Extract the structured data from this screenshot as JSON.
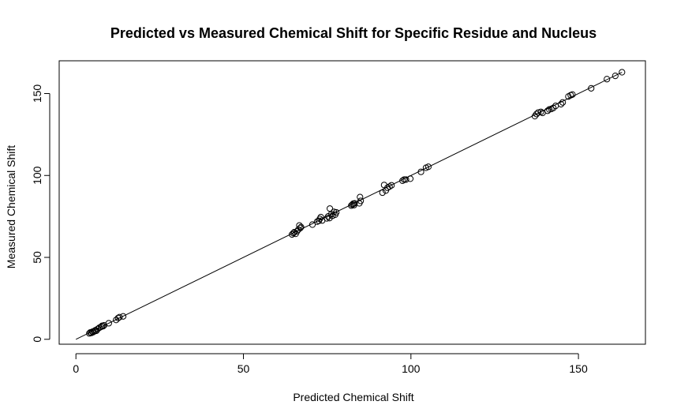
{
  "chart_data": {
    "type": "scatter",
    "title": "Predicted vs Measured Chemical Shift for Specific Residue and Nucleus",
    "xlabel": "Predicted Chemical Shift",
    "ylabel": "Measured Chemical Shift",
    "xlim": [
      -5,
      170
    ],
    "ylim": [
      -3,
      170
    ],
    "xticks": [
      0,
      50,
      100,
      150
    ],
    "yticks": [
      0,
      50,
      100,
      150
    ],
    "xtick_labels": [
      "0",
      "50",
      "100",
      "150"
    ],
    "ytick_labels": [
      "0",
      "50",
      "100",
      "150"
    ],
    "grid": false,
    "legend": "none",
    "reference_line": {
      "x": [
        0,
        163
      ],
      "y": [
        0,
        163
      ]
    },
    "points": [
      [
        4.0,
        3.6
      ],
      [
        4.3,
        4.2
      ],
      [
        4.6,
        3.9
      ],
      [
        4.9,
        4.6
      ],
      [
        5.2,
        4.4
      ],
      [
        5.5,
        5.1
      ],
      [
        5.8,
        5.5
      ],
      [
        6.1,
        5.2
      ],
      [
        6.5,
        6.3
      ],
      [
        7.0,
        7.1
      ],
      [
        7.5,
        7.6
      ],
      [
        7.8,
        8.2
      ],
      [
        8.1,
        8.0
      ],
      [
        8.4,
        8.5
      ],
      [
        9.8,
        9.8
      ],
      [
        12.0,
        11.8
      ],
      [
        12.6,
        13.0
      ],
      [
        13.0,
        13.5
      ],
      [
        14.1,
        14.0
      ],
      [
        64.5,
        64.0
      ],
      [
        64.9,
        64.8
      ],
      [
        65.2,
        65.4
      ],
      [
        65.6,
        64.4
      ],
      [
        66.0,
        65.9
      ],
      [
        66.4,
        67.0
      ],
      [
        66.7,
        69.5
      ],
      [
        67.0,
        68.0
      ],
      [
        67.2,
        68.5
      ],
      [
        70.6,
        70.0
      ],
      [
        72.0,
        71.8
      ],
      [
        72.5,
        72.3
      ],
      [
        72.8,
        73.5
      ],
      [
        73.1,
        74.6
      ],
      [
        73.5,
        72.5
      ],
      [
        74.9,
        73.8
      ],
      [
        75.3,
        75.0
      ],
      [
        75.7,
        74.0
      ],
      [
        75.8,
        79.8
      ],
      [
        76.2,
        76.3
      ],
      [
        76.6,
        75.4
      ],
      [
        77.0,
        77.8
      ],
      [
        77.4,
        76.1
      ],
      [
        77.7,
        77.5
      ],
      [
        82.2,
        81.6
      ],
      [
        82.5,
        82.2
      ],
      [
        82.8,
        82.8
      ],
      [
        83.0,
        81.9
      ],
      [
        83.2,
        83.0
      ],
      [
        84.6,
        83.0
      ],
      [
        84.8,
        86.8
      ],
      [
        85.0,
        84.5
      ],
      [
        91.5,
        89.5
      ],
      [
        92.0,
        94.2
      ],
      [
        92.5,
        90.8
      ],
      [
        93.0,
        92.5
      ],
      [
        93.6,
        93.2
      ],
      [
        94.2,
        94.0
      ],
      [
        97.5,
        96.8
      ],
      [
        98.0,
        97.5
      ],
      [
        98.5,
        97.5
      ],
      [
        99.8,
        98.0
      ],
      [
        103.0,
        102.2
      ],
      [
        104.5,
        104.7
      ],
      [
        105.2,
        105.3
      ],
      [
        137.0,
        136.2
      ],
      [
        137.5,
        137.5
      ],
      [
        138.0,
        138.4
      ],
      [
        138.8,
        138.8
      ],
      [
        139.3,
        138.2
      ],
      [
        140.8,
        139.5
      ],
      [
        141.3,
        140.3
      ],
      [
        141.9,
        140.6
      ],
      [
        142.5,
        141.2
      ],
      [
        143.2,
        142.5
      ],
      [
        144.8,
        143.5
      ],
      [
        145.3,
        144.6
      ],
      [
        147.0,
        148.2
      ],
      [
        147.7,
        149.0
      ],
      [
        148.2,
        149.4
      ],
      [
        153.8,
        153.2
      ],
      [
        158.5,
        158.8
      ],
      [
        161.0,
        160.8
      ],
      [
        163.0,
        163.0
      ]
    ]
  }
}
